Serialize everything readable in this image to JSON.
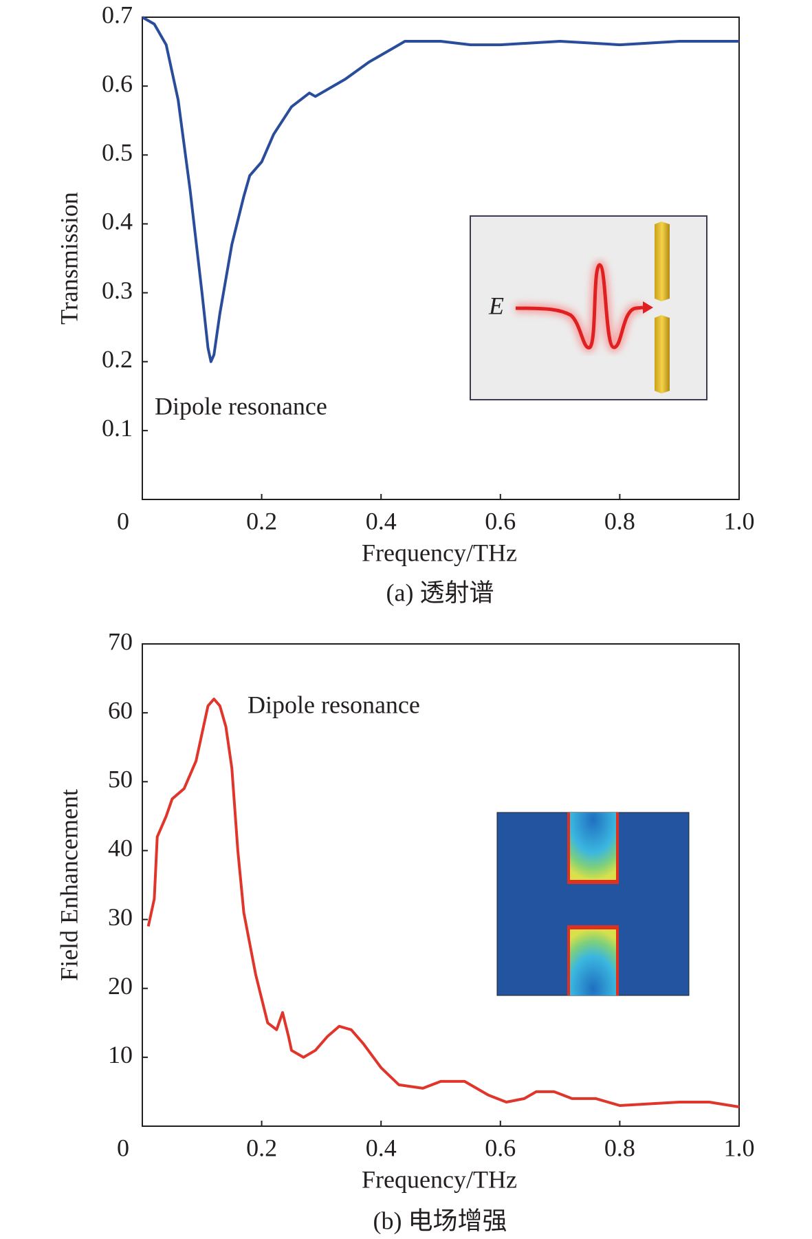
{
  "chart_data": [
    {
      "type": "line",
      "caption": "(a) 透射谱",
      "x_label": "Frequency/THz",
      "y_label": "Transmission",
      "annotation": "Dipole resonance",
      "inset_label": "E",
      "color": "#2a4d9b",
      "x": [
        0.0,
        0.02,
        0.04,
        0.06,
        0.08,
        0.1,
        0.11,
        0.115,
        0.12,
        0.13,
        0.15,
        0.17,
        0.18,
        0.2,
        0.22,
        0.25,
        0.28,
        0.29,
        0.31,
        0.34,
        0.38,
        0.4,
        0.43,
        0.44,
        0.5,
        0.55,
        0.6,
        0.7,
        0.8,
        0.9,
        1.0
      ],
      "values": [
        0.7,
        0.69,
        0.66,
        0.58,
        0.45,
        0.3,
        0.22,
        0.2,
        0.21,
        0.27,
        0.37,
        0.44,
        0.47,
        0.49,
        0.53,
        0.57,
        0.59,
        0.585,
        0.595,
        0.61,
        0.635,
        0.645,
        0.66,
        0.665,
        0.665,
        0.66,
        0.66,
        0.665,
        0.66,
        0.665,
        0.665
      ],
      "xlim": [
        0,
        1
      ],
      "ylim": [
        0,
        0.7
      ],
      "xticks": [
        0,
        0.2,
        0.4,
        0.6,
        0.8,
        {
          "value": 1,
          "label": "1.0"
        }
      ],
      "yticks": [
        0.1,
        0.2,
        0.3,
        0.4,
        0.5,
        0.6,
        0.7
      ]
    },
    {
      "type": "line",
      "caption": "(b) 电场增强",
      "x_label": "Frequency/THz",
      "y_label": "Field Enhancement",
      "annotation": "Dipole resonance",
      "color": "#e0352b",
      "x": [
        0.01,
        0.02,
        0.025,
        0.04,
        0.05,
        0.07,
        0.09,
        0.1,
        0.11,
        0.12,
        0.13,
        0.14,
        0.15,
        0.16,
        0.17,
        0.19,
        0.21,
        0.225,
        0.235,
        0.245,
        0.25,
        0.27,
        0.29,
        0.31,
        0.33,
        0.35,
        0.37,
        0.4,
        0.43,
        0.47,
        0.5,
        0.54,
        0.58,
        0.61,
        0.64,
        0.66,
        0.69,
        0.72,
        0.76,
        0.8,
        0.9,
        0.95,
        1.0
      ],
      "values": [
        29,
        33,
        42,
        45,
        47.5,
        49,
        53,
        57,
        61,
        62,
        61,
        58,
        52,
        40,
        31,
        22,
        15,
        14,
        16.5,
        13,
        11,
        10,
        11,
        13,
        14.5,
        14,
        12,
        8.5,
        6,
        5.5,
        6.5,
        6.5,
        4.5,
        3.5,
        4,
        5,
        5,
        4,
        4,
        3,
        3.5,
        3.5,
        2.8
      ],
      "xlim": [
        0,
        1
      ],
      "ylim": [
        0,
        70
      ],
      "xticks": [
        0,
        0.2,
        0.4,
        0.6,
        0.8,
        {
          "value": 1,
          "label": "1.0"
        }
      ],
      "yticks": [
        10,
        20,
        30,
        40,
        50,
        60,
        70
      ]
    }
  ]
}
